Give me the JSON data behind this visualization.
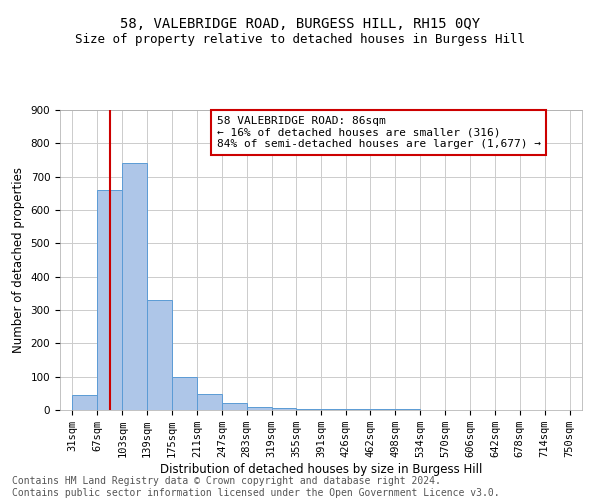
{
  "title": "58, VALEBRIDGE ROAD, BURGESS HILL, RH15 0QY",
  "subtitle": "Size of property relative to detached houses in Burgess Hill",
  "xlabel": "Distribution of detached houses by size in Burgess Hill",
  "ylabel": "Number of detached properties",
  "footer_line1": "Contains HM Land Registry data © Crown copyright and database right 2024.",
  "footer_line2": "Contains public sector information licensed under the Open Government Licence v3.0.",
  "annotation_line1": "58 VALEBRIDGE ROAD: 86sqm",
  "annotation_line2": "← 16% of detached houses are smaller (316)",
  "annotation_line3": "84% of semi-detached houses are larger (1,677) →",
  "bar_edges": [
    31,
    67,
    103,
    139,
    175,
    211,
    247,
    283,
    319,
    355,
    391,
    426,
    462,
    498,
    534,
    570,
    606,
    642,
    678,
    714,
    750
  ],
  "bar_heights": [
    44,
    660,
    740,
    330,
    100,
    47,
    20,
    8,
    5,
    4,
    3,
    4,
    3,
    2,
    1,
    1,
    1,
    1,
    0,
    1
  ],
  "bar_color": "#aec6e8",
  "bar_edge_color": "#5b9bd5",
  "vline_color": "#cc0000",
  "vline_x": 86,
  "annotation_box_color": "#cc0000",
  "ylim": [
    0,
    900
  ],
  "yticks": [
    0,
    100,
    200,
    300,
    400,
    500,
    600,
    700,
    800,
    900
  ],
  "grid_color": "#cccccc",
  "background_color": "#ffffff",
  "title_fontsize": 10,
  "subtitle_fontsize": 9,
  "axis_label_fontsize": 8.5,
  "tick_fontsize": 7.5,
  "annotation_fontsize": 8,
  "footer_fontsize": 7
}
